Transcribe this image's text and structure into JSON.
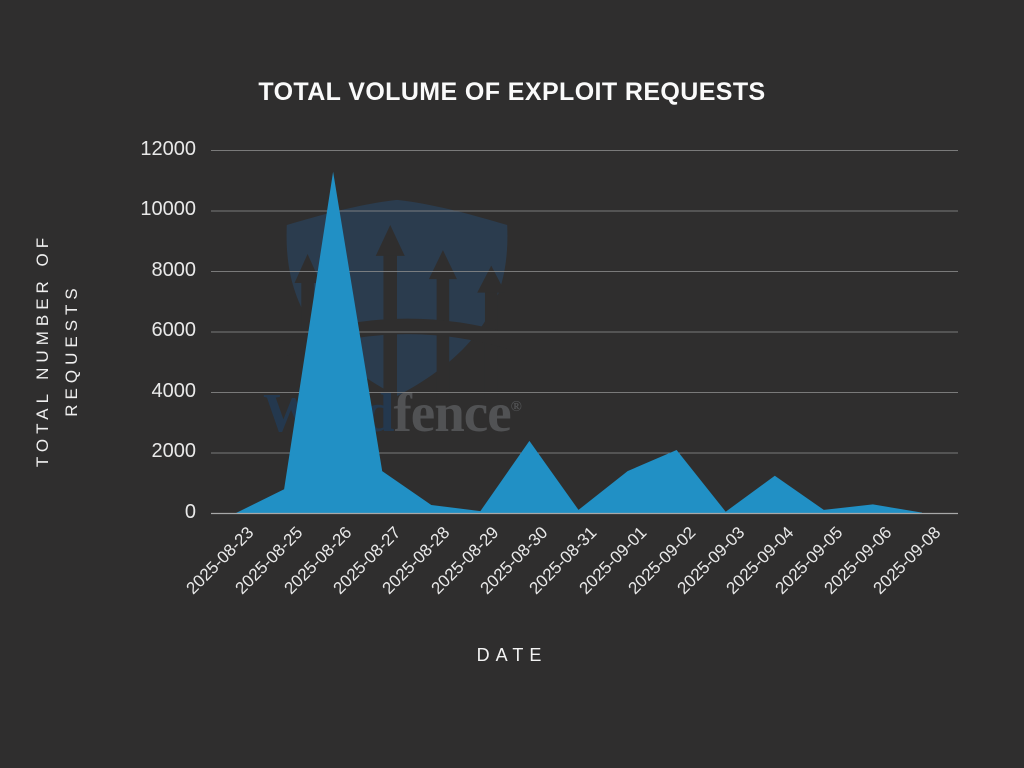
{
  "chart_data": {
    "type": "area",
    "title": "TOTAL VOLUME OF EXPLOIT REQUESTS",
    "xlabel": "DATE",
    "ylabel": "TOTAL NUMBER OF REQUESTS",
    "ylabel_lines": [
      "TOTAL NUMBER OF",
      "REQUESTS"
    ],
    "categories": [
      "2025-08-23",
      "2025-08-25",
      "2025-08-26",
      "2025-08-27",
      "2025-08-28",
      "2025-08-29",
      "2025-08-30",
      "2025-08-31",
      "2025-09-01",
      "2025-09-02",
      "2025-09-03",
      "2025-09-04",
      "2025-09-05",
      "2025-09-06",
      "2025-09-08"
    ],
    "values": [
      0,
      800,
      11300,
      1400,
      280,
      80,
      2400,
      120,
      1400,
      2100,
      60,
      1250,
      120,
      300,
      30
    ],
    "y_ticks": [
      0,
      2000,
      4000,
      6000,
      8000,
      10000,
      12000
    ],
    "ylim": [
      0,
      12000
    ],
    "grid": true,
    "legend": "none",
    "area_color": "#2190c5",
    "grid_color": "#8d8d8d",
    "baseline_color": "#a8a8a8",
    "background_color": "#2f2e2e",
    "text_color": "#e9e9e9",
    "watermark": {
      "brand_word1": "Word",
      "brand_word2": "fence",
      "registered": "®",
      "shield_color": "#2b3c4e",
      "word1_color": "#24384e",
      "word2_color": "#515254",
      "registered_color": "#515254"
    }
  }
}
